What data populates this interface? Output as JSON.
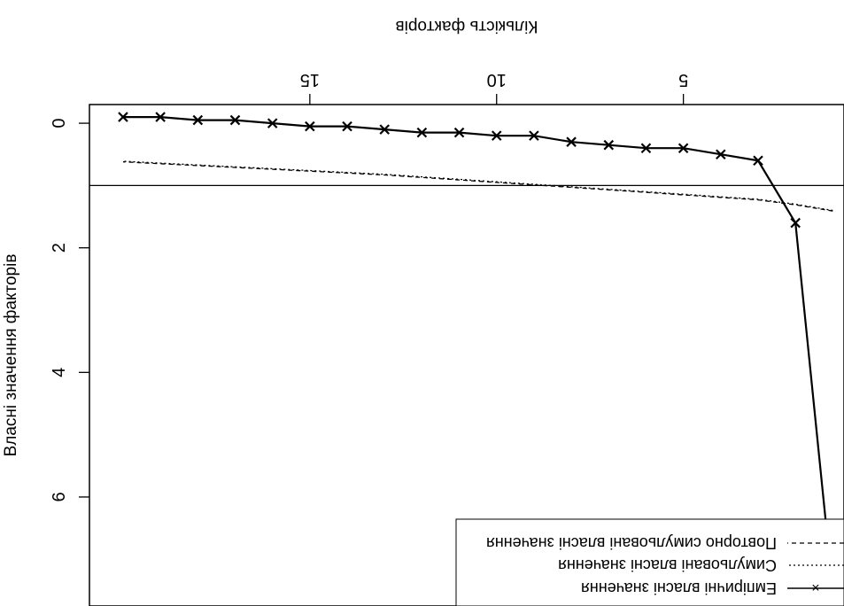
{
  "chart_data": {
    "type": "line",
    "title": "",
    "xlabel": "Кількість факторів",
    "ylabel": "Власні значення факторів",
    "x": [
      1,
      2,
      3,
      4,
      5,
      6,
      7,
      8,
      9,
      10,
      11,
      12,
      13,
      14,
      15,
      16,
      17,
      18,
      19,
      20
    ],
    "series": [
      {
        "name": "Емпіричні власні значення",
        "style": "solid-x-markers",
        "values": [
          7.5,
          1.6,
          0.6,
          0.5,
          0.4,
          0.4,
          0.35,
          0.3,
          0.2,
          0.2,
          0.15,
          0.15,
          0.1,
          0.05,
          0.05,
          0.0,
          -0.05,
          -0.05,
          -0.1,
          -0.1
        ]
      },
      {
        "name": "Симульовані власні значення",
        "style": "dotted",
        "values": [
          1.4,
          1.3,
          1.22,
          1.18,
          1.14,
          1.1,
          1.06,
          1.02,
          0.98,
          0.94,
          0.9,
          0.86,
          0.82,
          0.79,
          0.76,
          0.73,
          0.7,
          0.67,
          0.64,
          0.61
        ]
      },
      {
        "name": "Повторно симульовані власні значення",
        "style": "dashed",
        "values": [
          1.41,
          1.31,
          1.23,
          1.19,
          1.15,
          1.11,
          1.07,
          1.03,
          0.99,
          0.95,
          0.91,
          0.87,
          0.83,
          0.8,
          0.77,
          0.74,
          0.71,
          0.68,
          0.65,
          0.62
        ]
      }
    ],
    "reference_line_y": 1,
    "xticks": [
      "5",
      "10",
      "15"
    ],
    "xtick_values": [
      5,
      10,
      15
    ],
    "yticks": [
      "0",
      "2",
      "4",
      "6"
    ],
    "ytick_values": [
      0,
      2,
      4,
      6
    ],
    "xlim": [
      0.7,
      20.9
    ],
    "ylim": [
      -0.3,
      7.75
    ],
    "legend_position": "top-left",
    "orientation": "rotated 180 degrees",
    "colors": {
      "line": "#000000",
      "background": "#ffffff"
    }
  }
}
